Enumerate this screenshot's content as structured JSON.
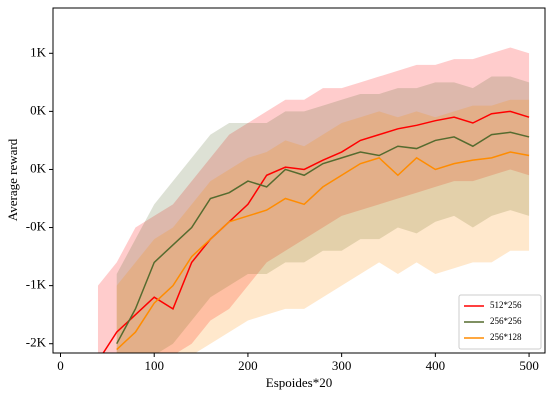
{
  "chart_data": {
    "type": "line",
    "x_label": "Espoides*20",
    "y_label": "Average reward",
    "x": [
      20,
      40,
      60,
      80,
      100,
      120,
      140,
      160,
      180,
      200,
      220,
      240,
      260,
      280,
      300,
      320,
      340,
      360,
      380,
      400,
      420,
      440,
      460,
      480,
      500
    ],
    "xlim": [
      -8,
      517
    ],
    "xticks": [
      0,
      100,
      200,
      300,
      400,
      500
    ],
    "ylim": [
      -1580,
      1390
    ],
    "yticks": [
      {
        "value": 1000,
        "label": "1K"
      },
      {
        "value": 500,
        "label": "0K"
      },
      {
        "value": 0,
        "label": "0K"
      },
      {
        "value": -500,
        "label": "-0K"
      },
      {
        "value": -1000,
        "label": "-1K"
      },
      {
        "value": -1500,
        "label": "-2K"
      }
    ],
    "legend": "lower right",
    "series": [
      {
        "name": "512*256",
        "color": "#ff0000",
        "values": [
          null,
          -1650,
          -1400,
          -1250,
          -1100,
          -1200,
          -800,
          -600,
          -450,
          -300,
          -50,
          20,
          0,
          80,
          150,
          250,
          300,
          350,
          380,
          420,
          450,
          400,
          480,
          500,
          450
        ],
        "upper": [
          null,
          -1000,
          -800,
          -500,
          -400,
          -300,
          -100,
          100,
          300,
          400,
          500,
          600,
          600,
          700,
          700,
          750,
          800,
          850,
          900,
          900,
          950,
          950,
          1000,
          1050,
          1000
        ],
        "lower": [
          null,
          -1600,
          -1600,
          -1600,
          -1600,
          -1600,
          -1500,
          -1300,
          -1200,
          -1000,
          -800,
          -700,
          -600,
          -500,
          -400,
          -350,
          -300,
          -250,
          -200,
          -150,
          -100,
          -100,
          -50,
          0,
          -50
        ]
      },
      {
        "name": "256*256",
        "color": "#556b2f",
        "values": [
          null,
          null,
          -1500,
          -1200,
          -800,
          -650,
          -500,
          -250,
          -200,
          -100,
          -150,
          0,
          -50,
          50,
          100,
          150,
          120,
          200,
          180,
          250,
          280,
          200,
          300,
          320,
          280
        ],
        "upper": [
          null,
          null,
          -900,
          -600,
          -300,
          -100,
          100,
          300,
          400,
          400,
          400,
          500,
          500,
          550,
          600,
          650,
          650,
          700,
          700,
          750,
          750,
          700,
          800,
          800,
          750
        ],
        "lower": [
          null,
          null,
          -1600,
          -1600,
          -1600,
          -1500,
          -1300,
          -1100,
          -1000,
          -900,
          -900,
          -800,
          -800,
          -700,
          -700,
          -600,
          -600,
          -500,
          -550,
          -450,
          -400,
          -500,
          -400,
          -350,
          -400
        ]
      },
      {
        "name": "256*128",
        "color": "#ff8c00",
        "values": [
          null,
          null,
          -1550,
          -1400,
          -1150,
          -1000,
          -750,
          -600,
          -450,
          -400,
          -350,
          -250,
          -300,
          -150,
          -50,
          50,
          100,
          -50,
          100,
          0,
          50,
          80,
          100,
          150,
          120
        ],
        "upper": [
          null,
          null,
          -1000,
          -800,
          -600,
          -500,
          -300,
          -100,
          0,
          100,
          150,
          250,
          200,
          300,
          400,
          450,
          500,
          450,
          500,
          450,
          500,
          550,
          550,
          600,
          600
        ],
        "lower": [
          null,
          null,
          -1600,
          -1600,
          -1600,
          -1600,
          -1600,
          -1500,
          -1400,
          -1300,
          -1250,
          -1200,
          -1200,
          -1100,
          -1000,
          -900,
          -800,
          -900,
          -800,
          -900,
          -850,
          -800,
          -800,
          -700,
          -700
        ]
      }
    ]
  }
}
